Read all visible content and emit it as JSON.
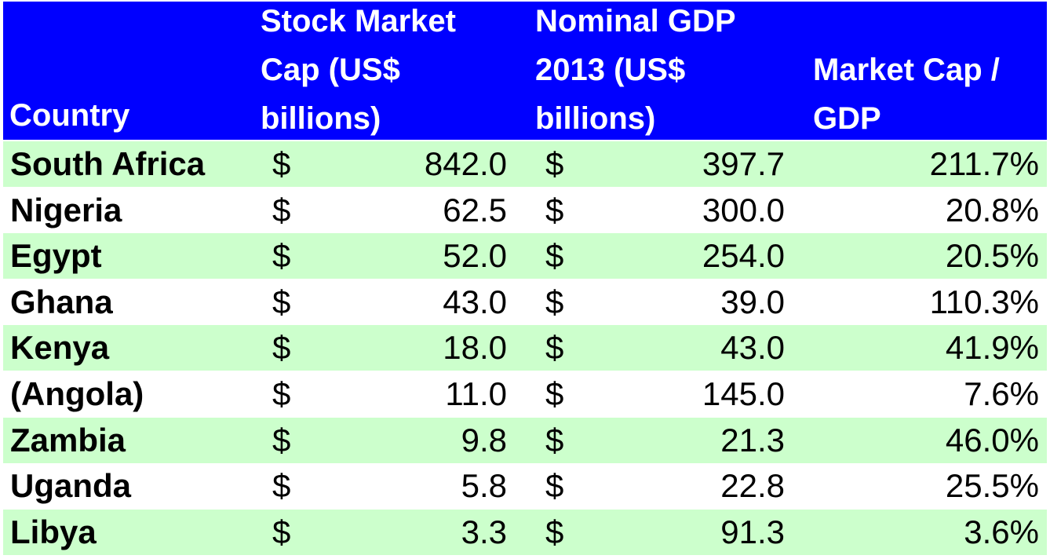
{
  "headers": {
    "country": "Country",
    "market_cap": "Stock Market\nCap (US$\nbillions)",
    "gdp": "Nominal GDP\n2013 (US$\nbillions)",
    "ratio": "Market Cap /\nGDP"
  },
  "currency_symbol": "$",
  "colors": {
    "header_bg": "#0000ff",
    "header_text": "#ffffff",
    "row_shade": "#ccffcc"
  },
  "chart_data": {
    "type": "table",
    "columns": [
      "Country",
      "Stock Market Cap (US$ billions)",
      "Nominal GDP 2013 (US$ billions)",
      "Market Cap / GDP"
    ],
    "rows": [
      {
        "country": "South Africa",
        "market_cap": "842.0",
        "gdp": "397.7",
        "ratio": "211.7%"
      },
      {
        "country": "Nigeria",
        "market_cap": "62.5",
        "gdp": "300.0",
        "ratio": "20.8%"
      },
      {
        "country": "Egypt",
        "market_cap": "52.0",
        "gdp": "254.0",
        "ratio": "20.5%"
      },
      {
        "country": "Ghana",
        "market_cap": "43.0",
        "gdp": "39.0",
        "ratio": "110.3%"
      },
      {
        "country": "Kenya",
        "market_cap": "18.0",
        "gdp": "43.0",
        "ratio": "41.9%"
      },
      {
        "country": "(Angola)",
        "market_cap": "11.0",
        "gdp": "145.0",
        "ratio": "7.6%"
      },
      {
        "country": "Zambia",
        "market_cap": "9.8",
        "gdp": "21.3",
        "ratio": "46.0%"
      },
      {
        "country": "Uganda",
        "market_cap": "5.8",
        "gdp": "22.8",
        "ratio": "25.5%"
      },
      {
        "country": "Libya",
        "market_cap": "3.3",
        "gdp": "91.3",
        "ratio": "3.6%"
      }
    ]
  }
}
